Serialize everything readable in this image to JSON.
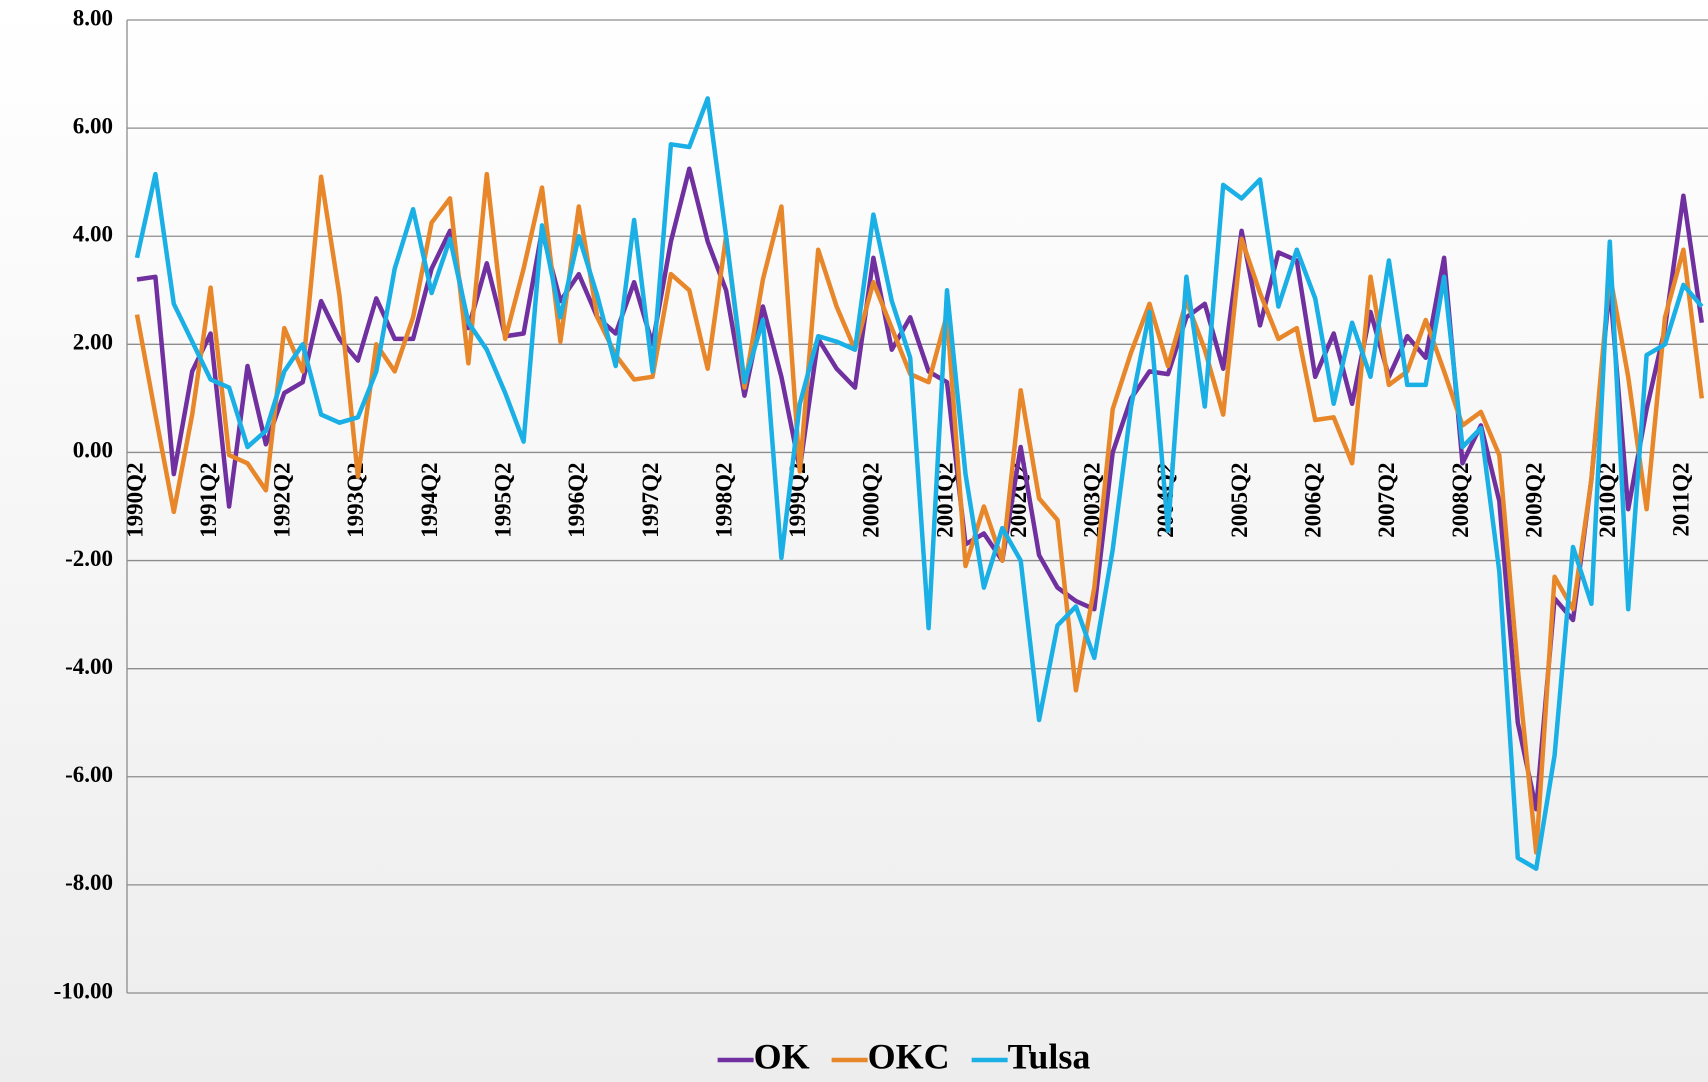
{
  "chart_data": {
    "type": "line",
    "categories": [
      "1990Q2",
      null,
      null,
      null,
      "1991Q2",
      null,
      null,
      null,
      "1992Q2",
      null,
      null,
      null,
      "1993Q2",
      null,
      null,
      null,
      "1994Q2",
      null,
      null,
      null,
      "1995Q2",
      null,
      null,
      null,
      "1996Q2",
      null,
      null,
      null,
      "1997Q2",
      null,
      null,
      null,
      "1998Q2",
      null,
      null,
      null,
      "1999Q2",
      null,
      null,
      null,
      "2000Q2",
      null,
      null,
      null,
      "2001Q2",
      null,
      null,
      null,
      "2002Q2",
      null,
      null,
      null,
      "2003Q2",
      null,
      null,
      null,
      "2004Q2",
      null,
      null,
      null,
      "2005Q2",
      null,
      null,
      null,
      "2006Q2",
      null,
      null,
      null,
      "2007Q2",
      null,
      null,
      null,
      "2008Q2",
      null,
      null,
      null,
      "2009Q2",
      null,
      null,
      null,
      "2010Q2",
      null,
      null,
      null,
      "2011Q2",
      null
    ],
    "series": [
      {
        "name": "OK",
        "color": "#7030a0",
        "values": [
          3.2,
          3.25,
          -0.4,
          1.5,
          2.2,
          -1.0,
          1.6,
          0.15,
          1.1,
          1.3,
          2.8,
          2.1,
          1.7,
          2.85,
          2.1,
          2.1,
          3.4,
          4.1,
          2.3,
          3.5,
          2.15,
          2.2,
          4.1,
          2.8,
          3.3,
          2.5,
          2.2,
          3.15,
          2.0,
          3.9,
          5.25,
          3.9,
          3.0,
          1.05,
          2.7,
          1.4,
          -0.3,
          2.1,
          1.55,
          1.2,
          3.6,
          1.9,
          2.5,
          1.5,
          1.3,
          -1.7,
          -1.5,
          -2.0,
          0.1,
          -1.9,
          -2.5,
          -2.75,
          -2.9,
          0.0,
          1.0,
          1.5,
          1.45,
          2.5,
          2.75,
          1.55,
          4.1,
          2.35,
          3.7,
          3.55,
          1.4,
          2.2,
          0.9,
          2.6,
          1.4,
          2.15,
          1.75,
          3.6,
          -0.2,
          0.5,
          -0.9,
          -5.0,
          -6.6,
          -2.7,
          -3.1,
          -0.5,
          3.1,
          -1.05,
          0.8,
          2.3,
          4.75,
          2.4
        ]
      },
      {
        "name": "OKC",
        "color": "#e8862a",
        "values": [
          2.55,
          0.7,
          -1.1,
          0.7,
          3.05,
          -0.05,
          -0.2,
          -0.7,
          2.3,
          1.5,
          5.1,
          2.9,
          -0.45,
          2.0,
          1.5,
          2.5,
          4.25,
          4.7,
          1.65,
          5.15,
          2.1,
          3.4,
          4.9,
          2.05,
          4.55,
          2.5,
          1.8,
          1.35,
          1.4,
          3.3,
          3.0,
          1.55,
          4.0,
          1.2,
          3.2,
          4.55,
          -0.35,
          3.75,
          2.7,
          1.9,
          3.15,
          2.3,
          1.45,
          1.3,
          2.55,
          -2.1,
          -1.0,
          -2.0,
          1.15,
          -0.85,
          -1.25,
          -4.4,
          -2.5,
          0.8,
          1.85,
          2.75,
          1.6,
          2.8,
          1.9,
          0.7,
          3.95,
          2.95,
          2.1,
          2.3,
          0.6,
          0.65,
          -0.2,
          3.25,
          1.25,
          1.5,
          2.45,
          1.5,
          0.5,
          0.75,
          -0.05,
          -4.0,
          -7.4,
          -2.3,
          -2.9,
          -0.5,
          3.3,
          1.4,
          -1.05,
          2.5,
          3.75,
          1.0
        ]
      },
      {
        "name": "Tulsa",
        "color": "#1ab0e6",
        "values": [
          3.6,
          5.15,
          2.75,
          2.05,
          1.35,
          1.2,
          0.1,
          0.4,
          1.5,
          2.0,
          0.7,
          0.55,
          0.65,
          1.5,
          3.4,
          4.5,
          2.95,
          3.95,
          2.4,
          1.9,
          1.1,
          0.2,
          4.2,
          2.5,
          4.0,
          2.9,
          1.6,
          4.3,
          1.5,
          5.7,
          5.65,
          6.55,
          4.0,
          1.3,
          2.45,
          -1.95,
          0.9,
          2.15,
          2.05,
          1.9,
          4.4,
          2.8,
          1.75,
          -3.25,
          3.0,
          -0.4,
          -2.5,
          -1.4,
          -2.0,
          -4.95,
          -3.2,
          -2.85,
          -3.8,
          -1.8,
          0.85,
          2.6,
          -1.45,
          3.25,
          0.85,
          4.95,
          4.7,
          5.05,
          2.7,
          3.75,
          2.85,
          0.9,
          2.4,
          1.4,
          3.55,
          1.25,
          1.25,
          3.25,
          0.1,
          0.45,
          -2.2,
          -7.5,
          -7.7,
          -5.6,
          -1.75,
          -2.8,
          3.9,
          -2.9,
          1.8,
          2.0,
          3.1,
          2.7
        ]
      }
    ],
    "ylim": [
      -10,
      8
    ],
    "yticks": [
      {
        "value": -10,
        "label": "-10.00"
      },
      {
        "value": -8,
        "label": "-8.00"
      },
      {
        "value": -6,
        "label": "-6.00"
      },
      {
        "value": -4,
        "label": "-4.00"
      },
      {
        "value": -2,
        "label": "-2.00"
      },
      {
        "value": 0,
        "label": "0.00"
      },
      {
        "value": 2,
        "label": "2.00"
      },
      {
        "value": 4,
        "label": "4.00"
      },
      {
        "value": 6,
        "label": "6.00"
      },
      {
        "value": 8,
        "label": "8.00"
      }
    ],
    "grid": true,
    "legend": "bottom"
  }
}
